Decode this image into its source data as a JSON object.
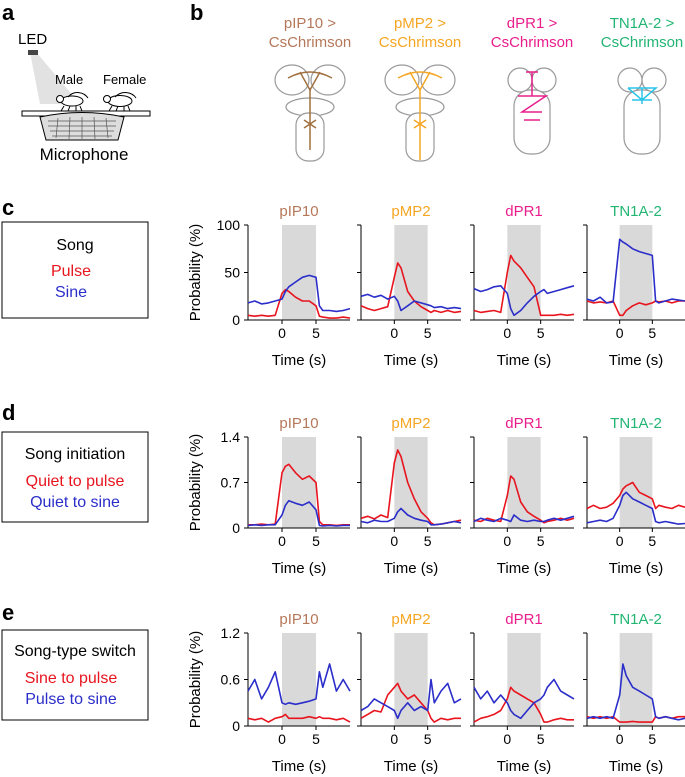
{
  "panels": {
    "a": "a",
    "b": "b",
    "c": "c",
    "d": "d",
    "e": "e"
  },
  "setup": {
    "led": "LED",
    "male": "Male",
    "female": "Female",
    "microphone": "Microphone"
  },
  "genotypes": [
    {
      "line1": "pIP10 >",
      "line2": "CsChrimson",
      "color": "#b5785a"
    },
    {
      "line1": "pMP2 >",
      "line2": "CsChrimson",
      "color": "#f5a623"
    },
    {
      "line1": "dPR1 >",
      "line2": "CsChrimson",
      "color": "#e91e8c"
    },
    {
      "line1": "TN1A-2 >",
      "line2": "CsChrimson",
      "color": "#22b573"
    }
  ],
  "neuron_colors": [
    "#a0703f",
    "#f5a623",
    "#e91e8c",
    "#29c4e8"
  ],
  "legends": {
    "c": {
      "title": "Song",
      "red": "Pulse",
      "blue": "Sine"
    },
    "d": {
      "title": "Song initiation",
      "red": "Quiet to pulse",
      "blue": "Quiet to sine"
    },
    "e": {
      "title": "Song-type switch",
      "red": "Sine to pulse",
      "blue": "Pulse to sine"
    }
  },
  "colors": {
    "red": "#e8141e",
    "blue": "#2b2ec9",
    "stim": "#d9d9d9",
    "axis": "#000000"
  },
  "chart_data": [
    {
      "type": "line",
      "row": "c",
      "ylabel": "Probability (%)",
      "xlabel": "Time (s)",
      "ylim": [
        0,
        100
      ],
      "xlim": [
        -5,
        10
      ],
      "yticks": [
        0,
        50,
        100
      ],
      "xticks": [
        0,
        5
      ],
      "stimulus_window": [
        0,
        5
      ],
      "titles": [
        "pIP10",
        "pMP2",
        "dPR1",
        "TN1A-2"
      ],
      "x": [
        -5,
        -4,
        -3,
        -2,
        -1,
        0,
        0.5,
        1,
        2,
        3,
        4,
        5,
        5.5,
        6,
        7,
        8,
        9,
        10
      ],
      "series": [
        {
          "name": "Pulse",
          "color": "red",
          "panels": [
            [
              5,
              4,
              5,
              4,
              5,
              28,
              32,
              30,
              24,
              20,
              20,
              15,
              4,
              3,
              2,
              2,
              3,
              2
            ],
            [
              15,
              12,
              10,
              12,
              14,
              45,
              60,
              55,
              30,
              20,
              14,
              10,
              8,
              10,
              8,
              10,
              8,
              9
            ],
            [
              10,
              8,
              9,
              10,
              8,
              50,
              68,
              62,
              55,
              45,
              35,
              5,
              5,
              5,
              5,
              6,
              5,
              6
            ],
            [
              20,
              18,
              19,
              18,
              20,
              5,
              5,
              10,
              15,
              18,
              16,
              18,
              20,
              19,
              20,
              18,
              20,
              20
            ]
          ]
        },
        {
          "name": "Sine",
          "color": "blue",
          "panels": [
            [
              18,
              20,
              17,
              18,
              20,
              22,
              30,
              35,
              40,
              45,
              47,
              45,
              15,
              10,
              10,
              9,
              10,
              12
            ],
            [
              25,
              27,
              24,
              26,
              22,
              25,
              20,
              10,
              15,
              20,
              18,
              16,
              15,
              13,
              14,
              12,
              13,
              12
            ],
            [
              33,
              30,
              32,
              35,
              36,
              28,
              12,
              5,
              10,
              18,
              25,
              30,
              32,
              28,
              30,
              32,
              34,
              36
            ],
            [
              22,
              20,
              24,
              18,
              19,
              85,
              82,
              80,
              75,
              72,
              70,
              68,
              20,
              18,
              20,
              22,
              21,
              20
            ]
          ]
        }
      ]
    },
    {
      "type": "line",
      "row": "d",
      "ylabel": "Probability (%)",
      "xlabel": "Time (s)",
      "ylim": [
        0,
        1.4
      ],
      "xlim": [
        -5,
        10
      ],
      "yticks": [
        0,
        0.7,
        1.4
      ],
      "xticks": [
        0,
        5
      ],
      "stimulus_window": [
        0,
        5
      ],
      "titles": [
        "pIP10",
        "pMP2",
        "dPR1",
        "TN1A-2"
      ],
      "x": [
        -5,
        -4,
        -3,
        -2,
        -1,
        0,
        0.5,
        1,
        2,
        3,
        4,
        5,
        5.5,
        6,
        7,
        8,
        9,
        10
      ],
      "series": [
        {
          "name": "Quiet to pulse",
          "color": "red",
          "panels": [
            [
              0.05,
              0.05,
              0.06,
              0.05,
              0.06,
              0.85,
              0.95,
              0.98,
              0.85,
              0.75,
              0.8,
              0.7,
              0.1,
              0.05,
              0.05,
              0.04,
              0.05,
              0.05
            ],
            [
              0.15,
              0.18,
              0.14,
              0.2,
              0.16,
              1.0,
              1.2,
              1.1,
              0.7,
              0.45,
              0.25,
              0.15,
              0.08,
              0.05,
              0.06,
              0.08,
              0.1,
              0.12
            ],
            [
              0.12,
              0.1,
              0.15,
              0.12,
              0.1,
              0.5,
              0.8,
              0.75,
              0.4,
              0.25,
              0.18,
              0.12,
              0.08,
              0.1,
              0.12,
              0.15,
              0.12,
              0.15
            ],
            [
              0.3,
              0.35,
              0.3,
              0.32,
              0.38,
              0.5,
              0.6,
              0.65,
              0.7,
              0.55,
              0.5,
              0.45,
              0.3,
              0.35,
              0.32,
              0.3,
              0.35,
              0.32
            ]
          ]
        },
        {
          "name": "Quiet to sine",
          "color": "blue",
          "panels": [
            [
              0.04,
              0.05,
              0.04,
              0.05,
              0.05,
              0.2,
              0.35,
              0.42,
              0.38,
              0.35,
              0.4,
              0.28,
              0.04,
              0.03,
              0.04,
              0.03,
              0.04,
              0.04
            ],
            [
              0.1,
              0.08,
              0.12,
              0.1,
              0.1,
              0.15,
              0.25,
              0.3,
              0.2,
              0.15,
              0.12,
              0.1,
              0.05,
              0.05,
              0.06,
              0.08,
              0.1,
              0.08
            ],
            [
              0.1,
              0.15,
              0.12,
              0.1,
              0.15,
              0.12,
              0.1,
              0.2,
              0.12,
              0.1,
              0.12,
              0.1,
              0.1,
              0.12,
              0.15,
              0.12,
              0.15,
              0.18
            ],
            [
              0.08,
              0.1,
              0.12,
              0.1,
              0.15,
              0.35,
              0.5,
              0.55,
              0.45,
              0.4,
              0.35,
              0.3,
              0.1,
              0.08,
              0.1,
              0.08,
              0.06,
              0.07
            ]
          ]
        }
      ]
    },
    {
      "type": "line",
      "row": "e",
      "ylabel": "Probability (%)",
      "xlabel": "Time (s)",
      "ylim": [
        0,
        1.2
      ],
      "xlim": [
        -5,
        10
      ],
      "yticks": [
        0,
        0.6,
        1.2
      ],
      "xticks": [
        0,
        5
      ],
      "stimulus_window": [
        0,
        5
      ],
      "titles": [
        "pIP10",
        "pMP2",
        "dPR1",
        "TN1A-2"
      ],
      "x": [
        -5,
        -4,
        -3,
        -2,
        -1,
        0,
        0.5,
        1,
        2,
        3,
        4,
        5,
        5.5,
        6,
        7,
        8,
        9,
        10
      ],
      "series": [
        {
          "name": "Sine to pulse",
          "color": "red",
          "panels": [
            [
              0.1,
              0.08,
              0.1,
              0.05,
              0.1,
              0.12,
              0.15,
              0.1,
              0.1,
              0.1,
              0.12,
              0.1,
              0.12,
              0.1,
              0.1,
              0.08,
              0.1,
              0.05
            ],
            [
              0.1,
              0.15,
              0.2,
              0.18,
              0.4,
              0.5,
              0.55,
              0.45,
              0.35,
              0.4,
              0.3,
              0.2,
              0.1,
              0.05,
              0.1,
              0.08,
              0.1,
              0.1
            ],
            [
              0.05,
              0.1,
              0.12,
              0.15,
              0.2,
              0.35,
              0.5,
              0.45,
              0.4,
              0.35,
              0.3,
              0.15,
              0.05,
              0.05,
              0.08,
              0.1,
              0.08,
              0.08
            ],
            [
              0.12,
              0.1,
              0.12,
              0.1,
              0.12,
              0.05,
              0.05,
              0.05,
              0.06,
              0.05,
              0.05,
              0.05,
              0.12,
              0.1,
              0.12,
              0.1,
              0.12,
              0.12
            ]
          ]
        },
        {
          "name": "Pulse to sine",
          "color": "blue",
          "panels": [
            [
              0.45,
              0.6,
              0.35,
              0.5,
              0.7,
              0.3,
              0.28,
              0.3,
              0.28,
              0.3,
              0.32,
              0.35,
              0.7,
              0.5,
              0.8,
              0.45,
              0.6,
              0.45
            ],
            [
              0.2,
              0.25,
              0.35,
              0.3,
              0.25,
              0.2,
              0.1,
              0.2,
              0.3,
              0.2,
              0.25,
              0.2,
              0.6,
              0.3,
              0.45,
              0.55,
              0.3,
              0.35
            ],
            [
              0.5,
              0.35,
              0.45,
              0.3,
              0.4,
              0.3,
              0.2,
              0.15,
              0.1,
              0.2,
              0.3,
              0.35,
              0.4,
              0.5,
              0.6,
              0.45,
              0.4,
              0.35
            ],
            [
              0.1,
              0.12,
              0.1,
              0.12,
              0.1,
              0.4,
              0.8,
              0.65,
              0.5,
              0.45,
              0.4,
              0.35,
              0.12,
              0.1,
              0.12,
              0.1,
              0.08,
              0.1
            ]
          ]
        }
      ]
    }
  ]
}
